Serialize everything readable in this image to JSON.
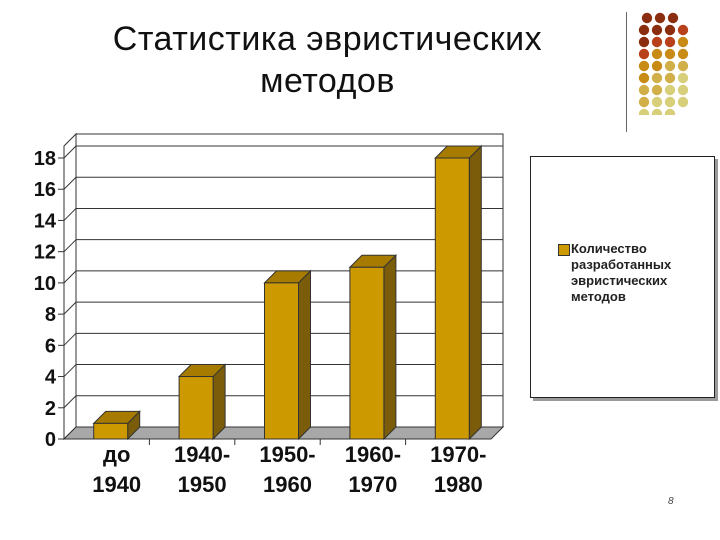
{
  "slide": {
    "title_line1": "Статистика эвристических",
    "title_line2": "методов",
    "page_number": "8"
  },
  "colors": {
    "bar_front": "#cc9900",
    "bar_side": "#7a5c0a",
    "bar_top": "#a77b00",
    "floor": "#a8a8a8",
    "dot_palette": [
      "#8b2d0f",
      "#b8401a",
      "#c88b16",
      "#d1b04a",
      "#d8cf7a"
    ]
  },
  "chart_data": {
    "type": "bar",
    "categories": [
      "до 1940",
      "1940-1950",
      "1950-1960",
      "1960-1970",
      "1970-1980"
    ],
    "category_lines": [
      [
        "до",
        "1940"
      ],
      [
        "1940-",
        "1950"
      ],
      [
        "1950-",
        "1960"
      ],
      [
        "1960-",
        "1970"
      ],
      [
        "1970-",
        "1980"
      ]
    ],
    "series": [
      {
        "name": "Количество разработанных эвристических методов",
        "values": [
          1,
          4,
          10,
          11,
          18
        ]
      }
    ],
    "yticks": [
      "0",
      "2",
      "4",
      "6",
      "8",
      "10",
      "12",
      "14",
      "16",
      "18"
    ],
    "ylim": [
      0,
      18
    ],
    "grid": true,
    "legend_position": "right",
    "style": "3d-column"
  }
}
